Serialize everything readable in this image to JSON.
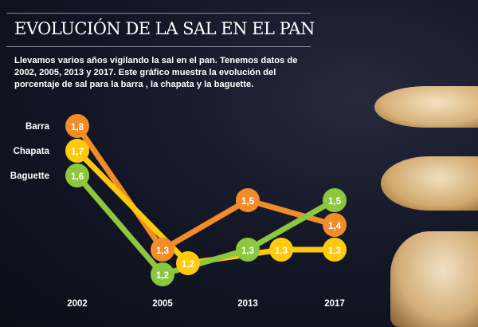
{
  "title": "EVOLUCIÓN DE LA SAL EN EL PAN",
  "description": "Llevamos varios años vigilando la sal en el pan. Tenemos datos de 2002, 2005, 2013 y 2017. Este gráfico muestra la evolución del porcentaje  de sal para la barra , la chapata y la baguette.",
  "chart_data": {
    "type": "line",
    "categories": [
      "2002",
      "2005",
      "2013",
      "2017"
    ],
    "series": [
      {
        "name": "Barra",
        "color": "#f28c28",
        "values": [
          1.8,
          1.3,
          1.5,
          1.4
        ],
        "labels": [
          "1,8",
          "1,3",
          "1,5",
          "1,4"
        ]
      },
      {
        "name": "Chapata",
        "color": "#ffc90e",
        "values": [
          1.7,
          1.2,
          1.3,
          1.3
        ],
        "labels": [
          "1,7",
          "1,2",
          "1,3",
          "1,3"
        ]
      },
      {
        "name": "Baguette",
        "color": "#8dc63f",
        "values": [
          1.6,
          1.2,
          1.3,
          1.5
        ],
        "labels": [
          "1,6",
          "1,2",
          "1,3",
          "1,5"
        ]
      }
    ],
    "xlabel": "",
    "ylabel": "",
    "grid": false,
    "legend": "left of first points"
  }
}
